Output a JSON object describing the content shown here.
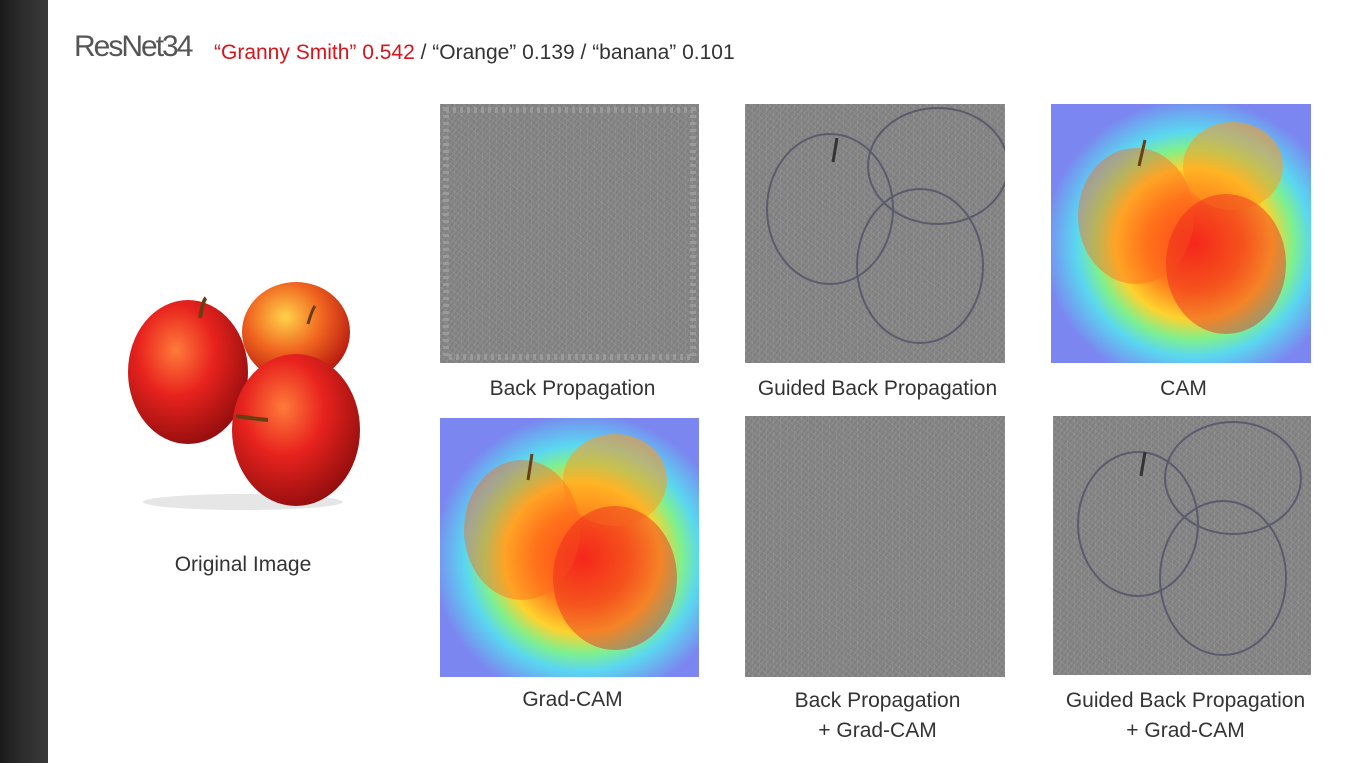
{
  "title": "ResNet34",
  "prediction": {
    "top": "“Granny Smith” 0.542",
    "rest": " / “Orange” 0.139 / “banana” 0.101"
  },
  "labels": {
    "original": "Original Image",
    "back_propagation": "Back Propagation",
    "guided_back_propagation": "Guided Back Propagation",
    "cam": "CAM",
    "grad_cam": "Grad-CAM",
    "bp_gradcam_line1": "Back Propagation",
    "bp_gradcam_line2": "+ Grad-CAM",
    "gbp_gradcam_line1": "Guided Back Propagation",
    "gbp_gradcam_line2": "+ Grad-CAM"
  },
  "colors": {
    "sidebar": "#2a2a2a",
    "top_prediction": "#d9131b",
    "text": "#333333",
    "noise_gray": "#858585"
  }
}
